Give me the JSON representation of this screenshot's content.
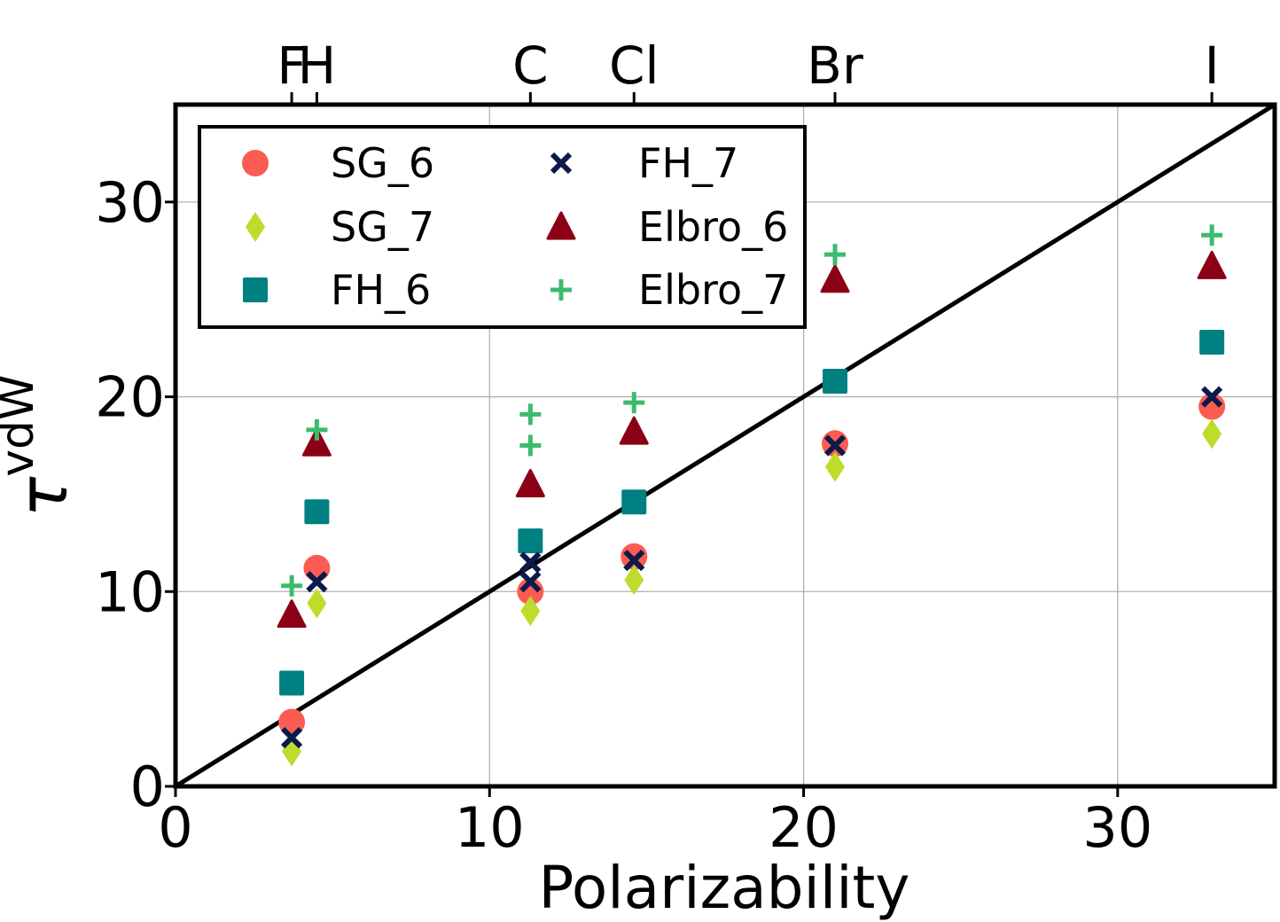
{
  "chart_data": {
    "type": "scatter",
    "title": "",
    "xlabel": "Polarizability",
    "ylabel": "τ",
    "ylabel_superscript": "vdW",
    "xlim": [
      0,
      35
    ],
    "ylim": [
      0,
      35
    ],
    "grid": true,
    "xticks": [
      0,
      10,
      20,
      30
    ],
    "xtick_labels": [
      "0",
      "10",
      "20",
      "30"
    ],
    "yticks": [
      0,
      10,
      20,
      30
    ],
    "ytick_labels": [
      "0",
      "10",
      "20",
      "30"
    ],
    "top_axis": {
      "ticks": [
        3.7,
        4.5,
        11.3,
        14.6,
        21.0,
        33.0
      ],
      "labels": [
        "F",
        "H",
        "C",
        "Cl",
        "Br",
        "I"
      ]
    },
    "reference_line": {
      "x": [
        0,
        35
      ],
      "y": [
        0,
        35
      ],
      "color": "#000000"
    },
    "legend_position": "upper-left",
    "series": [
      {
        "name": "SG_6",
        "marker": "circle",
        "color": "#fb5c52",
        "points": [
          [
            3.7,
            3.3
          ],
          [
            4.5,
            11.2
          ],
          [
            11.3,
            10.0
          ],
          [
            14.6,
            11.8
          ],
          [
            21.0,
            17.6
          ],
          [
            33.0,
            19.5
          ]
        ]
      },
      {
        "name": "SG_7",
        "marker": "diamond",
        "color": "#bddc2b",
        "points": [
          [
            3.7,
            1.8
          ],
          [
            4.5,
            9.4
          ],
          [
            11.3,
            9.0
          ],
          [
            14.6,
            10.6
          ],
          [
            21.0,
            16.4
          ],
          [
            33.0,
            18.1
          ]
        ]
      },
      {
        "name": "FH_6",
        "marker": "square",
        "color": "#008080",
        "points": [
          [
            3.7,
            5.3
          ],
          [
            4.5,
            14.1
          ],
          [
            11.3,
            12.6
          ],
          [
            14.6,
            14.6
          ],
          [
            21.0,
            20.8
          ],
          [
            33.0,
            22.8
          ]
        ]
      },
      {
        "name": "FH_7",
        "marker": "x",
        "color": "#0c1a4a",
        "points": [
          [
            3.7,
            2.5
          ],
          [
            4.5,
            10.5
          ],
          [
            11.3,
            10.5
          ],
          [
            11.3,
            11.5
          ],
          [
            14.6,
            11.6
          ],
          [
            21.0,
            17.5
          ],
          [
            33.0,
            20.0
          ]
        ]
      },
      {
        "name": "Elbro_6",
        "marker": "triangle",
        "color": "#8b0016",
        "points": [
          [
            3.7,
            8.8
          ],
          [
            4.5,
            17.6
          ],
          [
            11.3,
            15.5
          ],
          [
            14.6,
            18.2
          ],
          [
            21.0,
            26.0
          ],
          [
            33.0,
            26.7
          ]
        ]
      },
      {
        "name": "Elbro_7",
        "marker": "plus",
        "color": "#3cbb6e",
        "points": [
          [
            3.7,
            10.3
          ],
          [
            4.5,
            18.3
          ],
          [
            11.3,
            17.5
          ],
          [
            11.3,
            19.1
          ],
          [
            14.6,
            19.7
          ],
          [
            21.0,
            27.3
          ],
          [
            33.0,
            28.3
          ]
        ]
      }
    ]
  }
}
